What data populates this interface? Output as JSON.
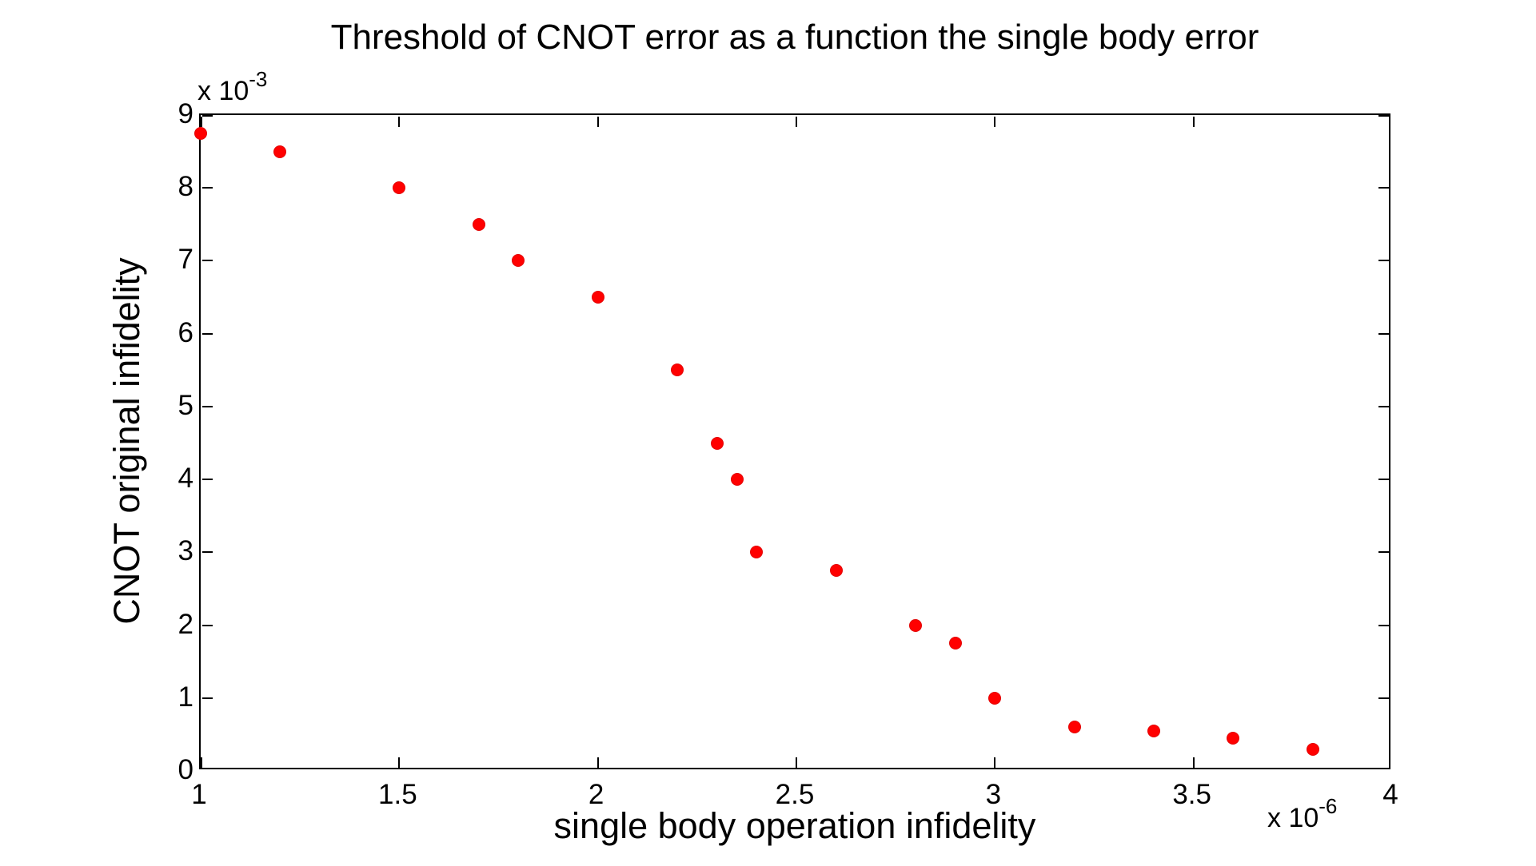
{
  "chart_data": {
    "type": "scatter",
    "title": "Threshold of CNOT error as a function the single body error",
    "xlabel": "single body operation infidelity",
    "ylabel": "CNOT original infidelity",
    "x_multiplier_base": "x 10",
    "x_multiplier_exp": "-6",
    "y_multiplier_base": "x 10",
    "y_multiplier_exp": "-3",
    "xlim": [
      1,
      4
    ],
    "ylim": [
      0,
      9
    ],
    "x_ticks": [
      {
        "v": 1,
        "label": "1"
      },
      {
        "v": 1.5,
        "label": "1.5"
      },
      {
        "v": 2,
        "label": "2"
      },
      {
        "v": 2.5,
        "label": "2.5"
      },
      {
        "v": 3,
        "label": "3"
      },
      {
        "v": 3.5,
        "label": "3.5"
      },
      {
        "v": 4,
        "label": "4"
      }
    ],
    "y_ticks": [
      {
        "v": 0,
        "label": "0"
      },
      {
        "v": 1,
        "label": "1"
      },
      {
        "v": 2,
        "label": "2"
      },
      {
        "v": 3,
        "label": "3"
      },
      {
        "v": 4,
        "label": "4"
      },
      {
        "v": 5,
        "label": "5"
      },
      {
        "v": 6,
        "label": "6"
      },
      {
        "v": 7,
        "label": "7"
      },
      {
        "v": 8,
        "label": "8"
      },
      {
        "v": 9,
        "label": "9"
      }
    ],
    "marker_color": "#ff0000",
    "axis_color": "#000000",
    "background_color": "#ffffff",
    "grid": false,
    "legend": null,
    "points": [
      {
        "x": 1.0,
        "y": 8.75
      },
      {
        "x": 1.2,
        "y": 8.5
      },
      {
        "x": 1.5,
        "y": 8.0
      },
      {
        "x": 1.7,
        "y": 7.5
      },
      {
        "x": 1.8,
        "y": 7.0
      },
      {
        "x": 2.0,
        "y": 6.5
      },
      {
        "x": 2.2,
        "y": 5.5
      },
      {
        "x": 2.3,
        "y": 4.5
      },
      {
        "x": 2.35,
        "y": 4.0
      },
      {
        "x": 2.4,
        "y": 3.0
      },
      {
        "x": 2.6,
        "y": 2.75
      },
      {
        "x": 2.8,
        "y": 2.0
      },
      {
        "x": 2.9,
        "y": 1.75
      },
      {
        "x": 3.0,
        "y": 1.0
      },
      {
        "x": 3.2,
        "y": 0.6
      },
      {
        "x": 3.4,
        "y": 0.55
      },
      {
        "x": 3.6,
        "y": 0.45
      },
      {
        "x": 3.8,
        "y": 0.3
      }
    ]
  }
}
